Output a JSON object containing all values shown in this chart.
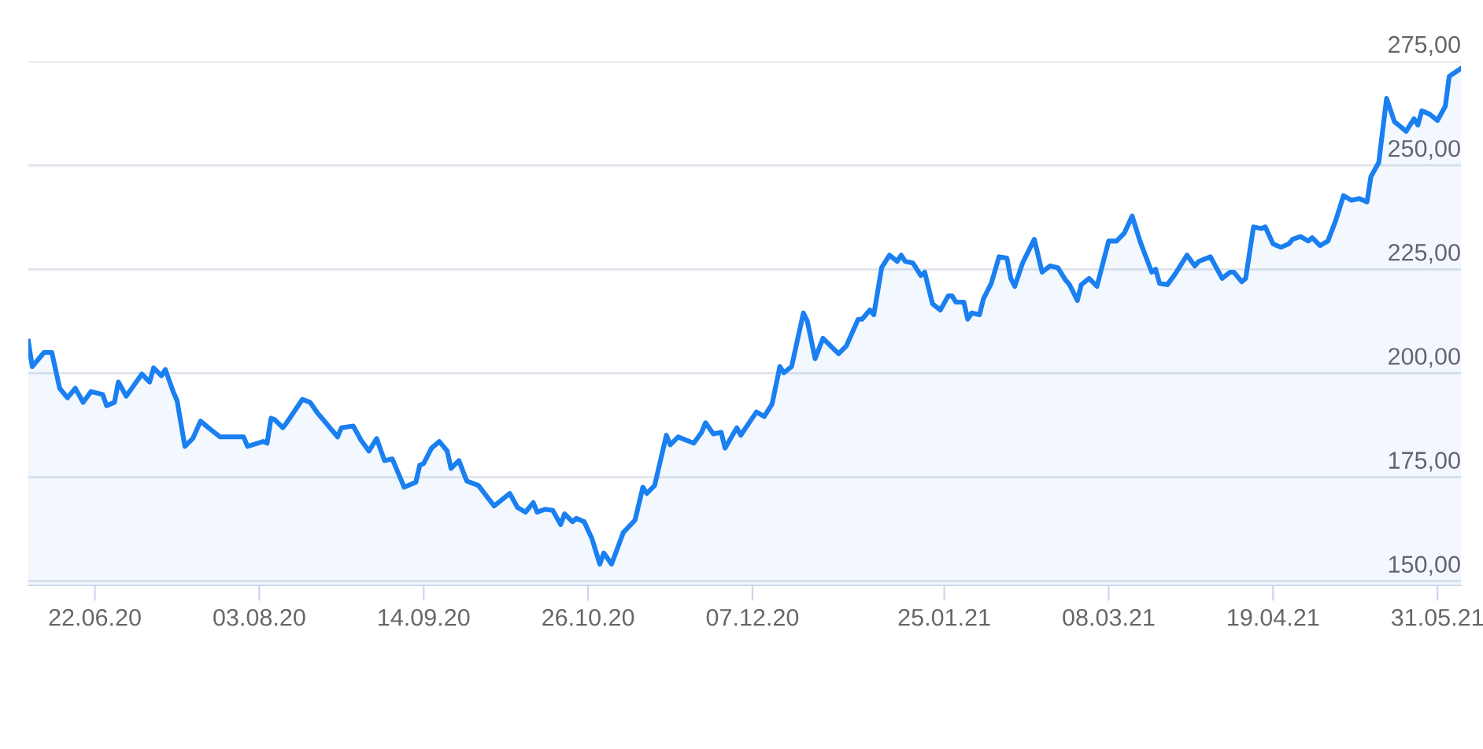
{
  "chart_data": {
    "type": "area",
    "x": [
      "2020-06-05",
      "2020-06-06",
      "2020-06-09",
      "2020-06-11",
      "2020-06-13",
      "2020-06-15",
      "2020-06-17",
      "2020-06-19",
      "2020-06-21",
      "2020-06-24",
      "2020-06-25",
      "2020-06-27",
      "2020-06-28",
      "2020-06-30",
      "2020-07-04",
      "2020-07-06",
      "2020-07-07",
      "2020-07-09",
      "2020-07-10",
      "2020-07-12",
      "2020-07-13",
      "2020-07-15",
      "2020-07-17",
      "2020-07-19",
      "2020-07-21",
      "2020-07-24",
      "2020-07-30",
      "2020-07-31",
      "2020-08-04",
      "2020-08-05",
      "2020-08-06",
      "2020-08-07",
      "2020-08-09",
      "2020-08-10",
      "2020-08-14",
      "2020-08-16",
      "2020-08-18",
      "2020-08-19",
      "2020-08-23",
      "2020-08-24",
      "2020-08-27",
      "2020-08-29",
      "2020-08-31",
      "2020-09-02",
      "2020-09-04",
      "2020-09-06",
      "2020-09-09",
      "2020-09-12",
      "2020-09-13",
      "2020-09-14",
      "2020-09-16",
      "2020-09-18",
      "2020-09-20",
      "2020-09-21",
      "2020-09-23",
      "2020-09-25",
      "2020-09-28",
      "2020-10-02",
      "2020-10-04",
      "2020-10-06",
      "2020-10-08",
      "2020-10-10",
      "2020-10-12",
      "2020-10-13",
      "2020-10-15",
      "2020-10-17",
      "2020-10-19",
      "2020-10-20",
      "2020-10-22",
      "2020-10-23",
      "2020-10-25",
      "2020-10-27",
      "2020-10-29",
      "2020-10-30",
      "2020-11-01",
      "2020-11-04",
      "2020-11-07",
      "2020-11-09",
      "2020-11-10",
      "2020-11-12",
      "2020-11-15",
      "2020-11-16",
      "2020-11-18",
      "2020-11-22",
      "2020-11-24",
      "2020-11-25",
      "2020-11-27",
      "2020-11-29",
      "2020-11-30",
      "2020-12-03",
      "2020-12-04",
      "2020-12-08",
      "2020-12-10",
      "2020-12-12",
      "2020-12-14",
      "2020-12-15",
      "2020-12-17",
      "2020-12-20",
      "2020-12-21",
      "2020-12-23",
      "2020-12-25",
      "2020-12-29",
      "2020-12-31",
      "2021-01-03",
      "2021-01-04",
      "2021-01-06",
      "2021-01-07",
      "2021-01-09",
      "2021-01-11",
      "2021-01-13",
      "2021-01-14",
      "2021-01-15",
      "2021-01-17",
      "2021-01-19",
      "2021-01-20",
      "2021-01-22",
      "2021-01-24",
      "2021-01-26",
      "2021-01-27",
      "2021-01-28",
      "2021-01-30",
      "2021-01-31",
      "2021-02-01",
      "2021-02-03",
      "2021-02-04",
      "2021-02-06",
      "2021-02-08",
      "2021-02-10",
      "2021-02-11",
      "2021-02-12",
      "2021-02-14",
      "2021-02-17",
      "2021-02-19",
      "2021-02-21",
      "2021-02-23",
      "2021-02-25",
      "2021-02-26",
      "2021-02-28",
      "2021-03-01",
      "2021-03-03",
      "2021-03-05",
      "2021-03-08",
      "2021-03-10",
      "2021-03-12",
      "2021-03-14",
      "2021-03-16",
      "2021-03-19",
      "2021-03-20",
      "2021-03-21",
      "2021-03-23",
      "2021-03-25",
      "2021-03-28",
      "2021-03-30",
      "2021-03-31",
      "2021-04-03",
      "2021-04-06",
      "2021-04-08",
      "2021-04-09",
      "2021-04-11",
      "2021-04-12",
      "2021-04-14",
      "2021-04-16",
      "2021-04-17",
      "2021-04-19",
      "2021-04-21",
      "2021-04-23",
      "2021-04-24",
      "2021-04-26",
      "2021-04-28",
      "2021-04-29",
      "2021-05-01",
      "2021-05-03",
      "2021-05-05",
      "2021-05-07",
      "2021-05-09",
      "2021-05-11",
      "2021-05-13",
      "2021-05-14",
      "2021-05-16",
      "2021-05-18",
      "2021-05-20",
      "2021-05-23",
      "2021-05-25",
      "2021-05-26",
      "2021-05-27",
      "2021-05-29",
      "2021-05-31",
      "2021-06-02",
      "2021-06-03",
      "2021-06-06"
    ],
    "series": [
      {
        "color": "#1a7ff0",
        "values": [
          207.7,
          201.6,
          205.0,
          205.0,
          196.4,
          194.1,
          196.4,
          193.0,
          195.6,
          194.9,
          192.2,
          193.0,
          197.9,
          194.5,
          199.8,
          197.9,
          201.3,
          199.4,
          200.9,
          195.6,
          193.4,
          182.4,
          184.3,
          188.5,
          186.9,
          184.7,
          184.7,
          182.4,
          183.6,
          183.2,
          189.2,
          188.8,
          186.9,
          188.1,
          193.7,
          193.0,
          190.3,
          189.2,
          184.7,
          186.9,
          187.3,
          183.9,
          181.3,
          184.3,
          179.0,
          179.4,
          172.6,
          173.8,
          177.9,
          178.3,
          182.0,
          183.6,
          181.3,
          177.1,
          179.0,
          174.1,
          173.0,
          168.1,
          169.6,
          171.1,
          167.7,
          166.6,
          168.9,
          166.6,
          167.3,
          167.0,
          163.6,
          166.2,
          164.3,
          165.1,
          164.3,
          160.2,
          154.1,
          156.8,
          154.1,
          161.7,
          164.7,
          172.6,
          171.1,
          173.0,
          185.1,
          182.8,
          184.7,
          183.2,
          185.8,
          188.1,
          185.4,
          185.8,
          182.0,
          186.9,
          185.1,
          190.7,
          189.6,
          192.6,
          201.6,
          200.1,
          201.6,
          214.5,
          212.6,
          203.5,
          208.4,
          204.7,
          206.6,
          213.0,
          213.0,
          215.2,
          214.1,
          225.4,
          228.4,
          226.9,
          228.4,
          226.9,
          226.5,
          223.5,
          224.3,
          216.7,
          215.2,
          218.6,
          218.6,
          217.1,
          217.1,
          213.0,
          214.5,
          214.1,
          217.9,
          221.6,
          228.0,
          227.7,
          222.8,
          220.9,
          226.5,
          232.2,
          224.3,
          225.8,
          225.4,
          222.4,
          221.3,
          217.5,
          221.3,
          222.8,
          220.9,
          231.8,
          231.8,
          233.7,
          237.8,
          231.8,
          224.3,
          225.0,
          221.6,
          221.3,
          223.9,
          228.4,
          225.8,
          226.9,
          228.0,
          222.8,
          224.3,
          224.3,
          222.0,
          222.8,
          235.2,
          234.8,
          235.2,
          231.1,
          230.3,
          231.1,
          232.2,
          232.9,
          231.8,
          232.6,
          230.7,
          231.8,
          236.7,
          242.7,
          241.6,
          242.0,
          241.2,
          247.3,
          250.7,
          266.1,
          260.5,
          258.2,
          261.2,
          259.7,
          263.1,
          262.3,
          260.8,
          264.2,
          271.4,
          273.3
        ]
      }
    ],
    "xlim": [
      "2020-06-05",
      "2021-06-06"
    ],
    "xticks": [
      {
        "value": "2020-06-22",
        "label": "22.06.20"
      },
      {
        "value": "2020-08-03",
        "label": "03.08.20"
      },
      {
        "value": "2020-09-14",
        "label": "14.09.20"
      },
      {
        "value": "2020-10-26",
        "label": "26.10.20"
      },
      {
        "value": "2020-12-07",
        "label": "07.12.20"
      },
      {
        "value": "2021-01-25",
        "label": "25.01.21"
      },
      {
        "value": "2021-03-08",
        "label": "08.03.21"
      },
      {
        "value": "2021-04-19",
        "label": "19.04.21"
      },
      {
        "value": "2021-05-31",
        "label": "31.05.21"
      }
    ],
    "ylim": [
      149,
      275
    ],
    "yticks": [
      {
        "value": 150,
        "label": "150,00"
      },
      {
        "value": 175,
        "label": "175,00"
      },
      {
        "value": 200,
        "label": "200,00"
      },
      {
        "value": 225,
        "label": "225,00"
      },
      {
        "value": 250,
        "label": "250,00"
      },
      {
        "value": 275,
        "label": "275,00"
      }
    ],
    "grid": "y",
    "line_style": "solid"
  }
}
